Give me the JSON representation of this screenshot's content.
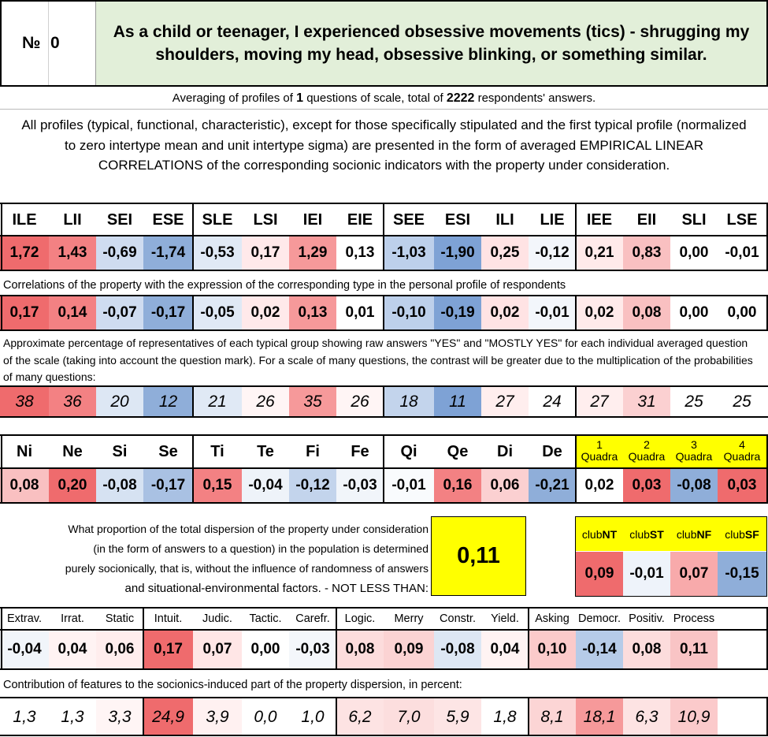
{
  "header": {
    "number_label": "№",
    "number_value": "0",
    "question": "As a child or teenager, I experienced obsessive movements (tics) - shrugging my shoulders, moving my head, obsessive blinking, or something similar."
  },
  "averaging": {
    "prefix": "Averaging of profiles of ",
    "questions": "1",
    "middle": " questions of scale, total of ",
    "respondents": "2222",
    "suffix": " respondents' answers."
  },
  "intro_text": "All profiles (typical, functional, characteristic), except for those specifically stipulated and the first typical profile (normalized to zero intertype mean and unit intertype sigma) are presented in the form of averaged EMPIRICAL LINEAR CORRELATIONS of the corresponding socionic indicators with the property under consideration.",
  "types": {
    "headers": [
      "ILE",
      "LII",
      "SEI",
      "ESE",
      "SLE",
      "LSI",
      "IEI",
      "EIE",
      "SEE",
      "ESI",
      "ILI",
      "LIE",
      "IEE",
      "EII",
      "SLI",
      "LSE"
    ],
    "profile": [
      "1,72",
      "1,43",
      "-0,69",
      "-1,74",
      "-0,53",
      "0,17",
      "1,29",
      "0,13",
      "-1,03",
      "-1,90",
      "0,25",
      "-0,12",
      "0,21",
      "0,83",
      "0,00",
      "-0,01"
    ],
    "profile_colors": [
      "#ef6b6d",
      "#f38183",
      "#cfdcf0",
      "#8faed9",
      "#e0e9f5",
      "#ffe9ea",
      "#f6999a",
      "#ffffff",
      "#bdd0eb",
      "#7ea2d5",
      "#ffe3e4",
      "#f3f6fb",
      "#ffeaea",
      "#f9c0c1",
      "#ffffff",
      "#ffffff"
    ],
    "corr_caption": "Correlations of the property with the expression of the corresponding type in the personal profile of respondents",
    "correlations": [
      "0,17",
      "0,14",
      "-0,07",
      "-0,17",
      "-0,05",
      "0,02",
      "0,13",
      "0,01",
      "-0,10",
      "-0,19",
      "0,02",
      "-0,01",
      "0,02",
      "0,08",
      "0,00",
      "0,00"
    ],
    "correlation_colors": [
      "#ef6b6d",
      "#f38183",
      "#cfdcf0",
      "#8faed9",
      "#e0e9f5",
      "#ffe9ea",
      "#f6999a",
      "#ffffff",
      "#bdd0eb",
      "#7ea2d5",
      "#ffe3e4",
      "#f3f6fb",
      "#ffeaea",
      "#f9c0c1",
      "#ffffff",
      "#ffffff"
    ],
    "pct_caption": "Approximate percentage of representatives of each typical group showing raw answers \"YES\" and \"MOSTLY YES\" for each individual averaged question of the scale (taking into account the question mark). For a scale of many questions, the contrast will be greater due to the multiplication of the probabilities of many questions:",
    "percentages": [
      "38",
      "36",
      "20",
      "12",
      "21",
      "26",
      "35",
      "26",
      "18",
      "11",
      "27",
      "24",
      "27",
      "31",
      "25",
      "25"
    ],
    "percentage_colors": [
      "#ef6b6d",
      "#f38183",
      "#dde7f4",
      "#8faed9",
      "#e0e9f5",
      "#fff5f5",
      "#f6999a",
      "#fff5f5",
      "#c3d4ec",
      "#7ea2d5",
      "#ffeeee",
      "#ffffff",
      "#ffeeee",
      "#fbd0d1",
      "#ffffff",
      "#ffffff"
    ]
  },
  "functions": {
    "headers": [
      "Ni",
      "Ne",
      "Si",
      "Se",
      "Ti",
      "Te",
      "Fi",
      "Fe",
      "Qi",
      "Qe",
      "Di",
      "De"
    ],
    "values": [
      "0,08",
      "0,20",
      "-0,08",
      "-0,17",
      "0,15",
      "-0,04",
      "-0,12",
      "-0,03",
      "-0,01",
      "0,16",
      "0,06",
      "-0,21"
    ],
    "colors": [
      "#f9c0c1",
      "#ef6b6d",
      "#d6e2f2",
      "#a9c1e3",
      "#f38183",
      "#eef3f9",
      "#c3d4ec",
      "#f1f5fa",
      "#f9fbfd",
      "#f38183",
      "#fbd0d1",
      "#8faed9"
    ],
    "quadra_headers": [
      {
        "num": "1",
        "label": "Quadra"
      },
      {
        "num": "2",
        "label": "Quadra"
      },
      {
        "num": "3",
        "label": "Quadra"
      },
      {
        "num": "4",
        "label": "Quadra"
      }
    ],
    "quadra_values": [
      "0,02",
      "0,03",
      "-0,08",
      "0,03"
    ],
    "quadra_colors": [
      "#ffffff",
      "#ef6b6d",
      "#8faed9",
      "#ef6b6d"
    ]
  },
  "dispersion": {
    "lines": [
      "What proportion of the total dispersion of the property under consideration",
      "(in the form of answers to a question) in the population is determined",
      "purely socionically, that is, without the influence of randomness of answers",
      "and situational-environmental factors. - NOT LESS THAN:"
    ],
    "value": "0,11"
  },
  "clubs": {
    "headers": [
      {
        "prefix": "club",
        "bold": "NT"
      },
      {
        "prefix": "club",
        "bold": "ST"
      },
      {
        "prefix": "club",
        "bold": "NF"
      },
      {
        "prefix": "club",
        "bold": "SF"
      }
    ],
    "values": [
      "0,09",
      "-0,01",
      "0,07",
      "-0,15"
    ],
    "colors": [
      "#ef6b6d",
      "#eef3fa",
      "#f8aaab",
      "#8faed9"
    ]
  },
  "features": {
    "headers": [
      "Extrav.",
      "Irrat.",
      "Static",
      "Intuit.",
      "Judic.",
      "Tactic.",
      "Carefr.",
      "Logic.",
      "Merry",
      "Constr.",
      "Yield.",
      "Asking",
      "Democr.",
      "Positiv.",
      "Process"
    ],
    "values": [
      "-0,04",
      "0,04",
      "0,06",
      "0,17",
      "0,07",
      "0,00",
      "-0,03",
      "0,08",
      "0,09",
      "-0,08",
      "0,04",
      "0,10",
      "-0,14",
      "0,08",
      "0,11"
    ],
    "colors": [
      "#f1f5fa",
      "#fff3f3",
      "#ffeded",
      "#ef6b6d",
      "#ffe6e6",
      "#ffffff",
      "#f4f7fb",
      "#fcdcdc",
      "#fbd3d3",
      "#dde7f4",
      "#fff3f3",
      "#fbcaca",
      "#b6cbe8",
      "#fcdcdc",
      "#f9c4c5"
    ],
    "contrib_caption": "Contribution of features to the socionics-induced part of the property dispersion, in percent:",
    "contributions": [
      "1,3",
      "1,3",
      "3,3",
      "24,9",
      "3,9",
      "0,0",
      "1,0",
      "6,2",
      "7,0",
      "5,9",
      "1,8",
      "8,1",
      "18,1",
      "6,3",
      "10,9"
    ],
    "contribution_colors": [
      "#ffffff",
      "#ffffff",
      "#fff5f5",
      "#ef6b6d",
      "#fff1f1",
      "#ffffff",
      "#ffffff",
      "#fde3e3",
      "#fcdede",
      "#fde5e5",
      "#ffffff",
      "#fcd5d5",
      "#f6999a",
      "#fde3e3",
      "#fbcacb"
    ]
  }
}
